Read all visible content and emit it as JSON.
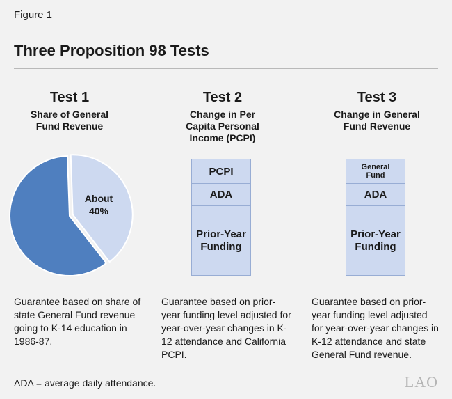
{
  "figure_label": "Figure 1",
  "title": "Three Proposition 98 Tests",
  "tests": [
    {
      "heading": "Test 1",
      "subheading": [
        "Share of General",
        "Fund Revenue"
      ],
      "pie_label": [
        "About",
        "40%"
      ],
      "description": "Guarantee based on share of state General Fund revenue going to K-14 education in 1986-87."
    },
    {
      "heading": "Test 2",
      "subheading": [
        "Change in Per",
        "Capita Personal",
        "Income (PCPI)"
      ],
      "segments": [
        "PCPI",
        "ADA",
        "Prior-Year Funding"
      ],
      "description": "Guarantee based on prior-year funding level adjusted for year-over-year changes in K-12 attendance and California PCPI."
    },
    {
      "heading": "Test 3",
      "subheading": [
        "Change in General",
        "Fund Revenue"
      ],
      "segments": [
        "General Fund",
        "ADA",
        "Prior-Year Funding"
      ],
      "description": "Guarantee based on prior-year funding level adjusted for year-over-year changes in K-12 attendance and state General Fund revenue."
    }
  ],
  "footnote": "ADA = average daily attendance.",
  "logo": "LAO",
  "colors": {
    "pie_dark": "#4f7fbf",
    "pie_light": "#cdd9f0",
    "segment_fill": "#cdd9f0",
    "segment_border": "#98add4"
  },
  "chart_data": {
    "type": "pie",
    "title": "",
    "slices": [
      {
        "label": "About 40%",
        "value": 40
      },
      {
        "label": "",
        "value": 60
      }
    ]
  }
}
